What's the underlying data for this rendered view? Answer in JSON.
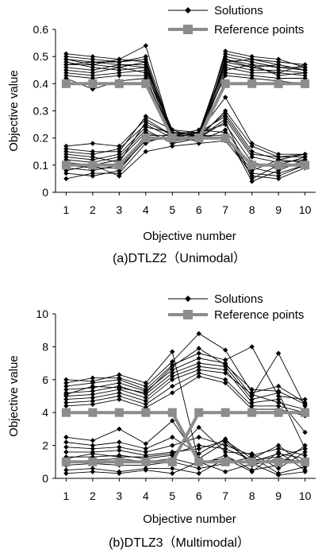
{
  "chart_data": [
    {
      "type": "line",
      "caption": "(a)DTLZ2（Unimodal）",
      "xlabel": "Objective number",
      "ylabel": "Objective value",
      "xlim": [
        0.6,
        10.4
      ],
      "ylim": [
        0,
        0.6
      ],
      "yticks": [
        "0",
        "0.1",
        "0.2",
        "0.3",
        "0.4",
        "0.5",
        "0.6"
      ],
      "xticks": [
        "1",
        "2",
        "3",
        "4",
        "5",
        "6",
        "7",
        "8",
        "9",
        "10"
      ],
      "legend": {
        "position": "top-right",
        "solutions": "Solutions",
        "reference": "Reference points"
      },
      "series": [
        {
          "name": "Solutions",
          "color": "#000000",
          "marker": "diamond",
          "lines": [
            [
              0.51,
              0.5,
              0.49,
              0.54,
              0.21,
              0.2,
              0.49,
              0.47,
              0.46,
              0.45
            ],
            [
              0.49,
              0.48,
              0.48,
              0.5,
              0.22,
              0.21,
              0.51,
              0.49,
              0.48,
              0.47
            ],
            [
              0.47,
              0.47,
              0.46,
              0.48,
              0.2,
              0.22,
              0.5,
              0.48,
              0.46,
              0.46
            ],
            [
              0.46,
              0.45,
              0.47,
              0.47,
              0.21,
              0.2,
              0.48,
              0.46,
              0.47,
              0.45
            ],
            [
              0.48,
              0.46,
              0.45,
              0.46,
              0.19,
              0.21,
              0.47,
              0.45,
              0.45,
              0.44
            ],
            [
              0.44,
              0.43,
              0.44,
              0.45,
              0.22,
              0.22,
              0.46,
              0.44,
              0.44,
              0.43
            ],
            [
              0.5,
              0.49,
              0.48,
              0.49,
              0.2,
              0.19,
              0.52,
              0.5,
              0.49,
              0.46
            ],
            [
              0.45,
              0.44,
              0.46,
              0.44,
              0.21,
              0.21,
              0.45,
              0.47,
              0.43,
              0.44
            ],
            [
              0.43,
              0.42,
              0.43,
              0.43,
              0.18,
              0.2,
              0.44,
              0.43,
              0.42,
              0.42
            ],
            [
              0.42,
              0.38,
              0.41,
              0.42,
              0.21,
              0.22,
              0.43,
              0.42,
              0.41,
              0.4
            ],
            [
              0.47,
              0.48,
              0.47,
              0.46,
              0.23,
              0.2,
              0.49,
              0.46,
              0.44,
              0.47
            ],
            [
              0.49,
              0.47,
              0.49,
              0.48,
              0.22,
              0.21,
              0.48,
              0.49,
              0.47,
              0.45
            ],
            [
              0.17,
              0.18,
              0.17,
              0.27,
              0.21,
              0.22,
              0.35,
              0.18,
              0.14,
              0.14
            ],
            [
              0.15,
              0.14,
              0.16,
              0.25,
              0.2,
              0.2,
              0.3,
              0.17,
              0.13,
              0.13
            ],
            [
              0.13,
              0.12,
              0.14,
              0.24,
              0.22,
              0.21,
              0.29,
              0.15,
              0.12,
              0.14
            ],
            [
              0.11,
              0.1,
              0.12,
              0.22,
              0.19,
              0.2,
              0.27,
              0.13,
              0.11,
              0.12
            ],
            [
              0.09,
              0.08,
              0.1,
              0.21,
              0.21,
              0.22,
              0.25,
              0.11,
              0.09,
              0.11
            ],
            [
              0.07,
              0.06,
              0.08,
              0.2,
              0.2,
              0.19,
              0.23,
              0.09,
              0.07,
              0.1
            ],
            [
              0.05,
              0.07,
              0.07,
              0.18,
              0.22,
              0.21,
              0.21,
              0.06,
              0.05,
              0.09
            ],
            [
              0.12,
              0.11,
              0.13,
              0.23,
              0.18,
              0.2,
              0.26,
              0.05,
              0.1,
              0.13
            ],
            [
              0.14,
              0.13,
              0.11,
              0.26,
              0.21,
              0.23,
              0.22,
              0.04,
              0.08,
              0.12
            ],
            [
              0.1,
              0.09,
              0.09,
              0.19,
              0.2,
              0.21,
              0.2,
              0.08,
              0.12,
              0.11
            ],
            [
              0.08,
              0.1,
              0.06,
              0.15,
              0.17,
              0.18,
              0.19,
              0.07,
              0.06,
              0.1
            ],
            [
              0.16,
              0.15,
              0.15,
              0.28,
              0.23,
              0.22,
              0.28,
              0.14,
              0.13,
              0.14
            ]
          ]
        },
        {
          "name": "Reference points",
          "color": "#8c8c8c",
          "marker": "square",
          "lines": [
            [
              0.4,
              0.4,
              0.4,
              0.4,
              0.2,
              0.2,
              0.4,
              0.4,
              0.4,
              0.4
            ],
            [
              0.1,
              0.1,
              0.1,
              0.2,
              0.2,
              0.2,
              0.2,
              0.1,
              0.1,
              0.1
            ]
          ]
        }
      ]
    },
    {
      "type": "line",
      "caption": "(b)DTLZ3（Multimodal）",
      "xlabel": "Objective number",
      "ylabel": "Objective value",
      "xlim": [
        0.6,
        10.4
      ],
      "ylim": [
        0,
        10
      ],
      "yticks": [
        "0",
        "2",
        "4",
        "6",
        "8",
        "10"
      ],
      "xticks": [
        "1",
        "2",
        "3",
        "4",
        "5",
        "6",
        "7",
        "8",
        "9",
        "10"
      ],
      "legend": {
        "position": "top-right",
        "solutions": "Solutions",
        "reference": "Reference points"
      },
      "series": [
        {
          "name": "Solutions",
          "color": "#000000",
          "marker": "diamond",
          "lines": [
            [
              6.0,
              5.9,
              6.3,
              5.8,
              7.7,
              1.0,
              1.2,
              0.9,
              1.0,
              1.1
            ],
            [
              5.8,
              6.1,
              6.1,
              5.6,
              7.1,
              8.8,
              7.8,
              5.2,
              5.6,
              4.6
            ],
            [
              5.6,
              5.8,
              6.0,
              5.4,
              6.9,
              7.6,
              7.2,
              8.0,
              5.0,
              4.8
            ],
            [
              5.4,
              5.5,
              5.8,
              5.3,
              6.6,
              7.3,
              7.0,
              5.0,
              7.6,
              4.4
            ],
            [
              5.2,
              5.3,
              5.6,
              5.1,
              6.4,
              7.0,
              6.8,
              4.8,
              5.2,
              1.8
            ],
            [
              5.0,
              5.1,
              5.4,
              4.9,
              6.2,
              6.8,
              6.6,
              4.6,
              4.8,
              2.8
            ],
            [
              4.8,
              4.9,
              5.2,
              4.7,
              6.0,
              6.6,
              6.4,
              5.1,
              4.6,
              4.2
            ],
            [
              4.6,
              4.7,
              5.0,
              4.5,
              5.6,
              6.4,
              6.0,
              4.4,
              4.4,
              4.0
            ],
            [
              4.4,
              4.5,
              4.8,
              4.3,
              5.2,
              6.2,
              5.8,
              4.2,
              4.2,
              3.8
            ],
            [
              5.1,
              5.6,
              5.5,
              5.2,
              6.8,
              7.9,
              6.9,
              5.4,
              5.3,
              4.5
            ],
            [
              2.5,
              2.3,
              3.0,
              2.1,
              3.5,
              1.2,
              2.2,
              1.0,
              1.5,
              1.2
            ],
            [
              2.2,
              2.0,
              2.2,
              1.8,
              2.5,
              1.5,
              2.4,
              0.8,
              1.2,
              1.0
            ],
            [
              1.9,
              1.8,
              1.9,
              1.6,
              2.0,
              2.5,
              2.0,
              1.4,
              1.8,
              1.4
            ],
            [
              1.6,
              1.6,
              1.7,
              1.4,
              1.6,
              1.8,
              2.3,
              1.2,
              2.0,
              0.8
            ],
            [
              1.3,
              1.3,
              1.4,
              1.2,
              1.4,
              3.1,
              1.6,
              1.5,
              0.6,
              1.6
            ],
            [
              1.0,
              1.1,
              1.2,
              1.0,
              1.2,
              0.8,
              1.4,
              0.5,
              0.8,
              2.0
            ],
            [
              0.8,
              0.9,
              0.8,
              0.8,
              1.0,
              0.6,
              0.9,
              1.3,
              0.3,
              0.7
            ],
            [
              0.5,
              0.6,
              0.4,
              0.6,
              0.6,
              0.3,
              1.2,
              0.4,
              1.6,
              0.5
            ],
            [
              0.3,
              0.4,
              0.3,
              0.5,
              0.3,
              1.0,
              0.4,
              0.9,
              0.2,
              0.4
            ],
            [
              1.2,
              1.5,
              1.3,
              1.3,
              1.5,
              2.0,
              1.8,
              1.1,
              1.3,
              1.8
            ]
          ]
        },
        {
          "name": "Reference points",
          "color": "#8c8c8c",
          "marker": "square",
          "lines": [
            [
              4,
              4,
              4,
              4,
              4,
              1,
              1,
              1,
              1,
              1
            ],
            [
              1,
              1,
              1,
              1,
              1,
              4,
              4,
              4,
              4,
              4
            ]
          ]
        }
      ]
    }
  ]
}
